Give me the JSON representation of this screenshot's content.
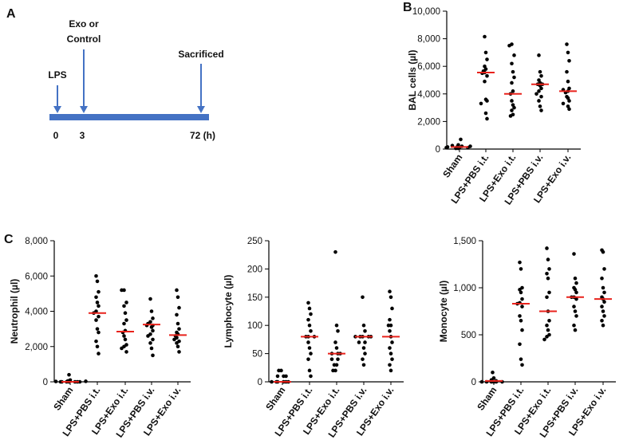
{
  "timeline": {
    "panel": "A",
    "events": [
      {
        "label": [
          "LPS"
        ],
        "time": "0"
      },
      {
        "label": [
          "Exo or",
          "Control"
        ],
        "time": "3"
      },
      {
        "label": [
          "Sacrificed"
        ],
        "time": "72 (h)"
      }
    ],
    "color": "#4472c4"
  },
  "chart_data": [
    {
      "type": "dotplot",
      "panel": "B",
      "ylabel": "BAL cells (µl)",
      "categories": [
        "Sham",
        "LPS+PBS i.t.",
        "LPS+Exo i.t.",
        "LPS+PBS i.v.",
        "LPS+Exo i.v."
      ],
      "points": [
        [
          50,
          100,
          150,
          200,
          250,
          100,
          150,
          50,
          700,
          300,
          200,
          100
        ],
        [
          8150,
          7000,
          6500,
          6000,
          5800,
          5650,
          5550,
          5500,
          5300,
          4900,
          3600,
          3500,
          3300,
          2600,
          2200
        ],
        [
          7600,
          7500,
          6800,
          6200,
          5600,
          5200,
          4800,
          4200,
          4000,
          3500,
          3200,
          3000,
          2800,
          2500,
          2400
        ],
        [
          6800,
          5600,
          5300,
          5000,
          4800,
          4700,
          4700,
          4600,
          4400,
          4200,
          4000,
          3800,
          3500,
          3100,
          2800
        ],
        [
          7600,
          7000,
          6400,
          5600,
          4900,
          4400,
          4300,
          4200,
          4100,
          3800,
          3700,
          3500,
          3300,
          3100,
          2900
        ]
      ],
      "medians": [
        150,
        5550,
        4000,
        4700,
        4200
      ],
      "ylim": [
        0,
        10000
      ],
      "yticks": [
        0,
        {
          "value": 2000,
          "label": "2,000"
        },
        {
          "value": 4000,
          "label": "4,000"
        },
        {
          "value": 6000,
          "label": "6,000"
        },
        {
          "value": 8000,
          "label": "8,000"
        },
        {
          "value": 10000,
          "label": "10,000"
        }
      ],
      "point_color": "#000000",
      "median_color": "#e8221b"
    },
    {
      "type": "dotplot",
      "panel": "C",
      "ylabel": "Neutrophil (µl)",
      "categories": [
        "Sham",
        "LPS+PBS i.t.",
        "LPS+Exo i.t.",
        "LPS+PBS i.v.",
        "LPS+Exo i.v."
      ],
      "points": [
        [
          400,
          100,
          50,
          0,
          0,
          0,
          0,
          0,
          0,
          0,
          20,
          30
        ],
        [
          6000,
          5700,
          5100,
          4800,
          4500,
          4300,
          4000,
          3900,
          3700,
          3500,
          3000,
          2800,
          2300,
          2000,
          1600
        ],
        [
          5200,
          5200,
          4500,
          4300,
          3900,
          3500,
          3300,
          2900,
          2800,
          2600,
          2400,
          2100,
          2000,
          1900,
          1700
        ],
        [
          4700,
          4000,
          3600,
          3400,
          3300,
          3200,
          3200,
          3100,
          2900,
          2700,
          2600,
          2400,
          2200,
          1900,
          1500
        ],
        [
          5200,
          4800,
          4200,
          3800,
          3300,
          3000,
          2800,
          2700,
          2600,
          2500,
          2400,
          2300,
          2200,
          2000,
          1700
        ]
      ],
      "medians": [
        0,
        3900,
        2850,
        3250,
        2650
      ],
      "ylim": [
        0,
        8000
      ],
      "yticks": [
        0,
        {
          "value": 2000,
          "label": "2,000"
        },
        {
          "value": 4000,
          "label": "4,000"
        },
        {
          "value": 6000,
          "label": "6,000"
        },
        {
          "value": 8000,
          "label": "8,000"
        }
      ],
      "point_color": "#000000",
      "median_color": "#e8221b"
    },
    {
      "type": "dotplot",
      "ylabel": "Lymphocyte (µl)",
      "categories": [
        "Sham",
        "LPS+PBS i.t.",
        "LPS+Exo i.t.",
        "LPS+PBS i.v.",
        "LPS+Exo i.v."
      ],
      "points": [
        [
          20,
          20,
          10,
          10,
          10,
          0,
          0,
          0,
          0,
          0,
          0
        ],
        [
          140,
          130,
          120,
          110,
          100,
          90,
          80,
          80,
          80,
          70,
          60,
          50,
          40,
          20,
          10
        ],
        [
          230,
          100,
          90,
          70,
          60,
          50,
          50,
          50,
          40,
          40,
          30,
          30,
          20,
          20
        ],
        [
          150,
          100,
          90,
          80,
          80,
          80,
          80,
          80,
          70,
          70,
          60,
          50,
          40,
          30
        ],
        [
          160,
          150,
          130,
          110,
          100,
          100,
          90,
          80,
          70,
          60,
          50,
          40,
          30,
          20
        ]
      ],
      "medians": [
        0,
        80,
        50,
        80,
        80
      ],
      "ylim": [
        0,
        250
      ],
      "yticks": [
        0,
        50,
        100,
        150,
        200,
        250
      ],
      "point_color": "#000000",
      "median_color": "#e8221b"
    },
    {
      "type": "dotplot",
      "ylabel": "Monocyte (µl)",
      "categories": [
        "Sham",
        "LPS+PBS i.t.",
        "LPS+Exo i.t.",
        "LPS+PBS i.v.",
        "LPS+Exo i.v."
      ],
      "points": [
        [
          100,
          40,
          20,
          10,
          0,
          0,
          0,
          0,
          0,
          0
        ],
        [
          1270,
          1200,
          1000,
          980,
          950,
          880,
          840,
          830,
          800,
          700,
          650,
          550,
          400,
          240,
          180
        ],
        [
          1420,
          1300,
          1200,
          1150,
          1100,
          950,
          900,
          750,
          650,
          600,
          550,
          500,
          480,
          450
        ],
        [
          1360,
          1100,
          1050,
          1000,
          980,
          950,
          900,
          900,
          880,
          800,
          750,
          700,
          600,
          550
        ],
        [
          1400,
          1380,
          1200,
          1100,
          1000,
          950,
          900,
          880,
          850,
          800,
          750,
          700,
          650,
          600
        ]
      ],
      "medians": [
        10,
        830,
        750,
        900,
        880
      ],
      "ylim": [
        0,
        1500
      ],
      "yticks": [
        0,
        500,
        {
          "value": 1000,
          "label": "1,000"
        },
        {
          "value": 1500,
          "label": "1,500"
        }
      ],
      "point_color": "#000000",
      "median_color": "#e8221b"
    }
  ]
}
